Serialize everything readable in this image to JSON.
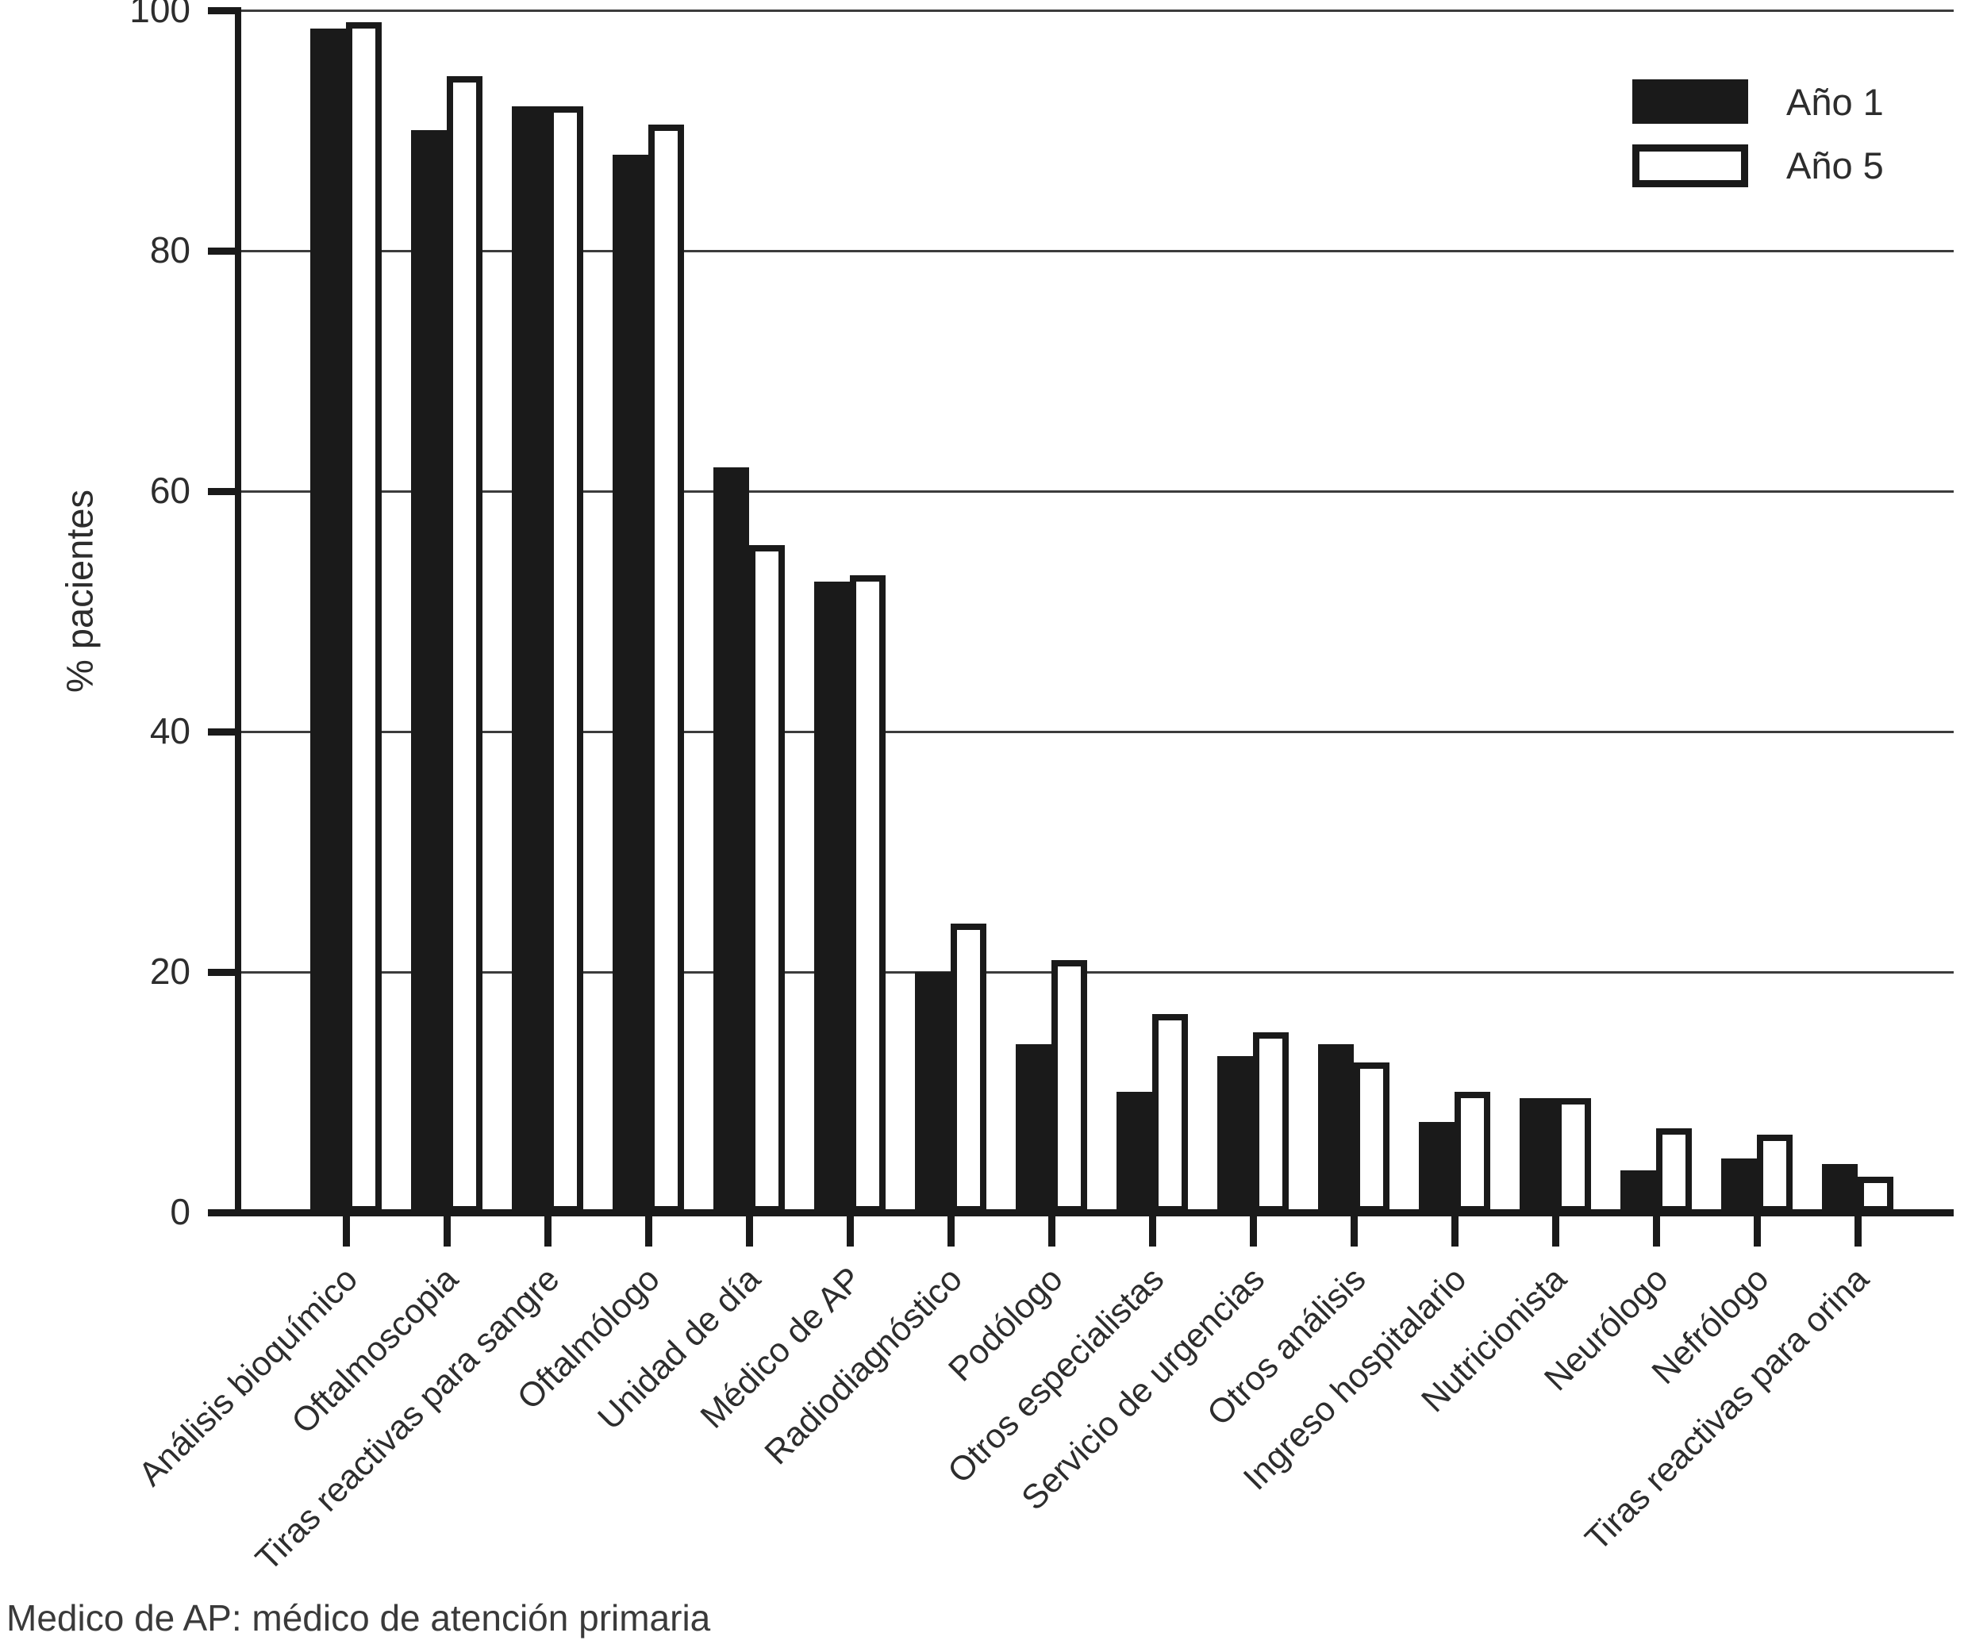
{
  "chart_data": {
    "type": "bar",
    "title": "",
    "y_axis_title": "% pacientes",
    "xlabel": "",
    "ylabel": "% pacientes",
    "ylim": [
      0,
      100
    ],
    "y_ticks": [
      0,
      20,
      40,
      60,
      80,
      100
    ],
    "grid": "horizontal",
    "legend_position": "top-right",
    "categories": [
      "Análisis bioquímico",
      "Oftalmoscopia",
      "Tiras reactivas para sangre",
      "Oftalmólogo",
      "Unidad de día",
      "Médico de AP",
      "Radiodiagnóstico",
      "Podólogo",
      "Otros especialistas",
      "Servicio de urgencias",
      "Otros análisis",
      "Ingreso hospitalario",
      "Nutricionista",
      "Neurólogo",
      "Nefrólogo",
      "Tiras reactivas para orina"
    ],
    "series": [
      {
        "name": "Año 1",
        "style": "filled",
        "values": [
          98.5,
          90,
          92,
          88,
          62,
          52.5,
          20,
          14,
          10,
          13,
          14,
          7.5,
          9.5,
          3.5,
          4.5,
          4
        ]
      },
      {
        "name": "Año 5",
        "style": "open",
        "values": [
          99,
          94.5,
          92,
          90.5,
          55.5,
          53,
          24,
          21,
          16.5,
          15,
          12.5,
          10,
          9.5,
          7,
          6.5,
          3
        ]
      }
    ]
  },
  "colors": {
    "bar_fill": "#1a1a1a",
    "open_bar_face": "#ffffff",
    "grid": "#3c3c3c",
    "text": "#2d2d2d"
  },
  "footnote": "Medico de AP: médico de atención primaria"
}
